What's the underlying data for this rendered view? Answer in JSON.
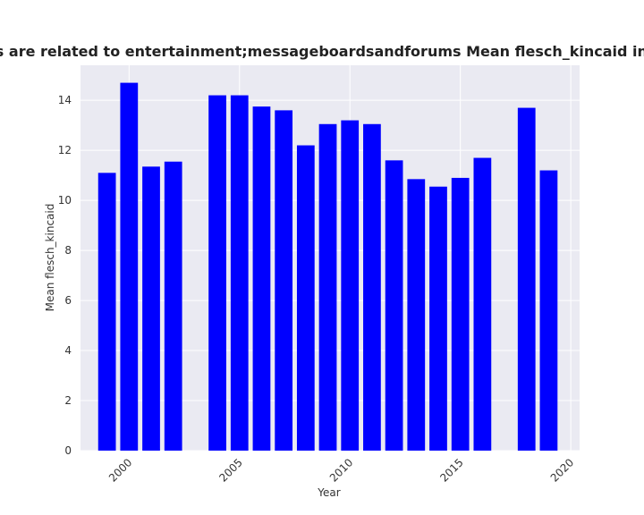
{
  "chart_data": {
    "type": "bar",
    "title": "Websites whose categories are related to entertainment;messageboardsandforums Mean flesch_kincaid in privacy policies over time",
    "xlabel": "Year",
    "ylabel": "Mean flesch_kincaid",
    "x": [
      1999,
      2000,
      2001,
      2002,
      2004,
      2005,
      2006,
      2007,
      2008,
      2009,
      2010,
      2011,
      2012,
      2013,
      2014,
      2015,
      2016,
      2018,
      2019
    ],
    "values": [
      11.1,
      14.7,
      11.35,
      11.55,
      14.2,
      14.2,
      13.75,
      13.6,
      12.2,
      13.05,
      13.2,
      13.05,
      11.6,
      10.85,
      10.55,
      10.9,
      11.7,
      13.7,
      11.2
    ],
    "xlim": [
      1997.8,
      2020.4
    ],
    "ylim": [
      0,
      15.4
    ],
    "xticks": [
      "2000",
      "2005",
      "2010",
      "2015",
      "2020"
    ],
    "yticks": [
      "0",
      "2",
      "4",
      "6",
      "8",
      "10",
      "12",
      "14"
    ],
    "grid": true,
    "bar_color": "#0000ff",
    "background_color": "#eaeaf2",
    "grid_color": "#ffffff"
  }
}
